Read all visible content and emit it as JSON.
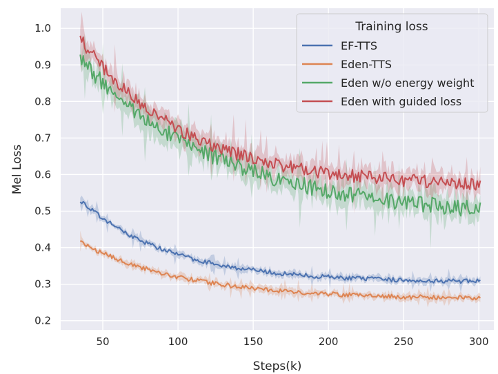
{
  "chart_data": {
    "type": "line",
    "title": "",
    "xlabel": "Steps(k)",
    "ylabel": "Mel Loss",
    "xlim": [
      22,
      310
    ],
    "ylim": [
      0.175,
      1.055
    ],
    "xticks": [
      50,
      100,
      150,
      200,
      250,
      300
    ],
    "yticks": [
      0.2,
      0.3,
      0.4,
      0.5,
      0.6,
      0.7,
      0.8,
      0.9,
      1.0
    ],
    "ytick_labels": [
      "0.2",
      "0.3",
      "0.4",
      "0.5",
      "0.6",
      "0.7",
      "0.8",
      "0.9",
      "1.0"
    ],
    "grid": true,
    "legend": {
      "title": "Training loss",
      "position": "top-right"
    },
    "series": [
      {
        "name": "EF-TTS",
        "color": "#4c72b0",
        "x_start": 35,
        "x_end": 301,
        "start": 0.53,
        "end": 0.308,
        "decay": 60,
        "noise": 0.006
      },
      {
        "name": "Eden-TTS",
        "color": "#dd8452",
        "x_start": 35,
        "x_end": 301,
        "start": 0.415,
        "end": 0.262,
        "decay": 70,
        "noise": 0.006
      },
      {
        "name": "Eden w/o energy weight",
        "color": "#55a868",
        "x_start": 35,
        "x_end": 301,
        "start": 0.915,
        "end": 0.505,
        "decay": 95,
        "noise": 0.022
      },
      {
        "name": "Eden with guided loss",
        "color": "#c44e52",
        "x_start": 35,
        "x_end": 301,
        "start": 0.97,
        "end": 0.575,
        "decay": 70,
        "noise": 0.018
      }
    ]
  }
}
